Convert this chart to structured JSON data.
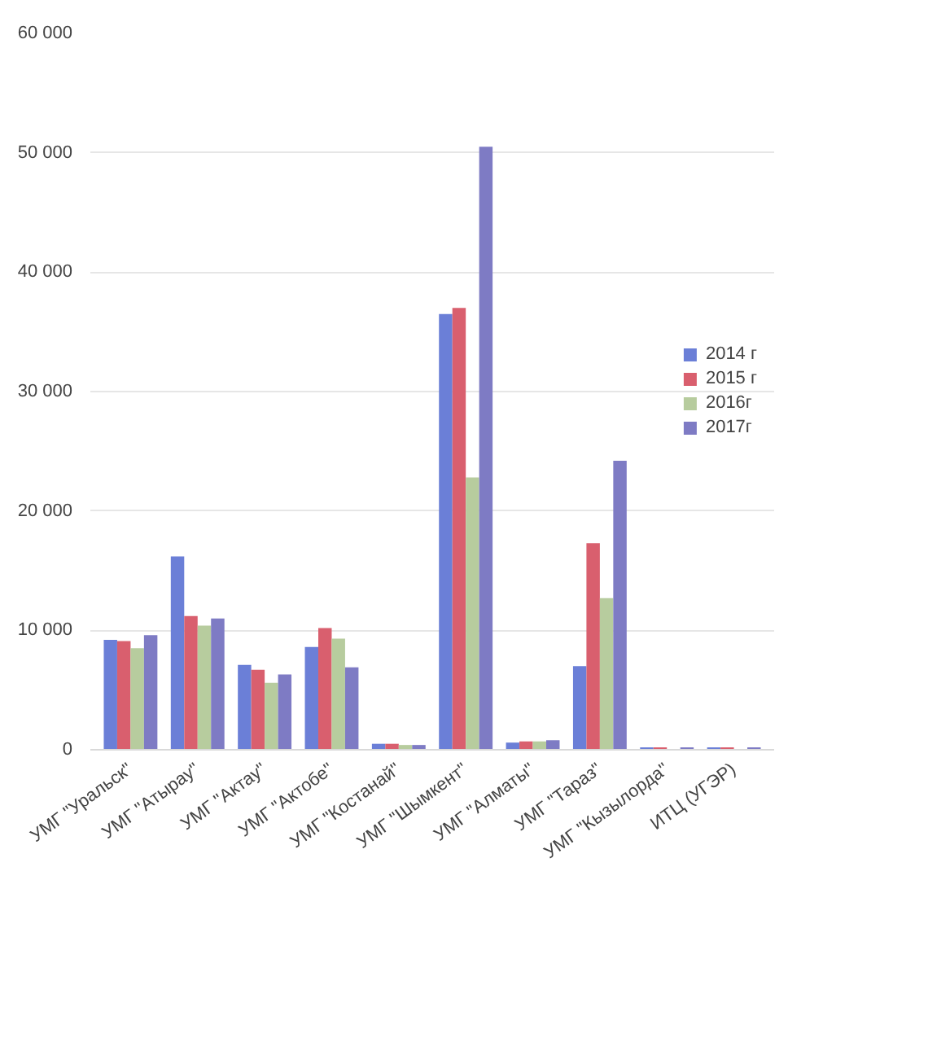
{
  "chart_data": {
    "type": "bar",
    "categories": [
      "УМГ \"Уральск\"",
      "УМГ \"Атырау\"",
      "УМГ \"Актау\"",
      "УМГ \"Актобе\"",
      "УМГ \"Костанай\"",
      "УМГ \"Шымкент\"",
      "УМГ \"Алматы\"",
      "УМГ \"Тараз\"",
      "УМГ \"Кызылорда\"",
      "ИТЦ (УГЭР)"
    ],
    "series": [
      {
        "name": "2014 г",
        "color": "#6b7fd7",
        "values": [
          9200,
          16200,
          7100,
          8600,
          500,
          36500,
          600,
          7000,
          200,
          200
        ]
      },
      {
        "name": "2015 г",
        "color": "#d95f6e",
        "values": [
          9100,
          11200,
          6700,
          10200,
          500,
          37000,
          700,
          17300,
          200,
          200
        ]
      },
      {
        "name": "2016г",
        "color": "#b7cc9e",
        "values": [
          8500,
          10400,
          5600,
          9300,
          400,
          22800,
          700,
          12700,
          null,
          null
        ]
      },
      {
        "name": "2017г",
        "color": "#7e7bc4",
        "values": [
          9600,
          11000,
          6300,
          6900,
          400,
          50500,
          800,
          24200,
          200,
          200
        ]
      }
    ],
    "ylim": [
      0,
      60000
    ],
    "yticks": [
      {
        "value": 0,
        "label": "0"
      },
      {
        "value": 10000,
        "label": "10 000"
      },
      {
        "value": 20000,
        "label": "20 000"
      },
      {
        "value": 30000,
        "label": "30 000"
      },
      {
        "value": 40000,
        "label": "40 000"
      },
      {
        "value": 50000,
        "label": "50 000"
      },
      {
        "value": 60000,
        "label": "60 000"
      }
    ],
    "grid": "y",
    "legend": "right"
  }
}
